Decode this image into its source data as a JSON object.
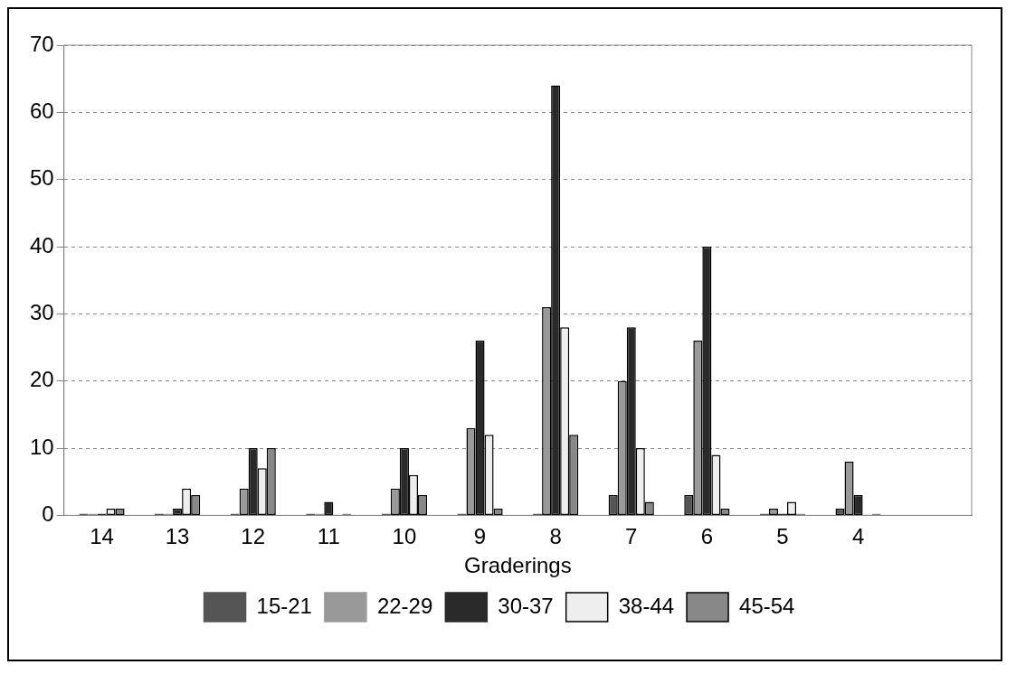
{
  "chart_data": {
    "type": "bar",
    "xlabel": "Graderings",
    "categories": [
      "14",
      "13",
      "12",
      "11",
      "10",
      "9",
      "8",
      "7",
      "6",
      "5",
      "4",
      null
    ],
    "series": [
      {
        "name": "15-21",
        "color": "#555555",
        "values": [
          0,
          0,
          0,
          0,
          0,
          0,
          0,
          3,
          3,
          0,
          1,
          null
        ]
      },
      {
        "name": "22-29",
        "color": "#999999",
        "values": [
          0,
          0,
          4,
          0,
          4,
          13,
          31,
          20,
          26,
          1,
          8,
          null
        ]
      },
      {
        "name": "30-37",
        "color": "#2a2a2a",
        "values": [
          0,
          1,
          10,
          2,
          10,
          26,
          64,
          28,
          40,
          0,
          3,
          null
        ]
      },
      {
        "name": "38-44",
        "color": "#eeeeee",
        "values": [
          1,
          4,
          7,
          0,
          6,
          12,
          28,
          10,
          9,
          2,
          0,
          null
        ]
      },
      {
        "name": "45-54",
        "color": "#888888",
        "values": [
          1,
          3,
          10,
          0,
          3,
          1,
          12,
          2,
          1,
          0,
          0,
          null
        ]
      }
    ],
    "ylim": [
      0,
      70
    ],
    "yticks": [
      0,
      10,
      20,
      30,
      40,
      50,
      60,
      70
    ],
    "grid": "y",
    "legend": "bottom"
  }
}
